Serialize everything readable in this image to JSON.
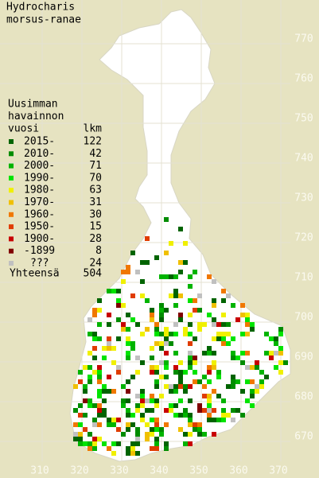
{
  "title": [
    "Hydrocharis",
    "morsus-ranae"
  ],
  "legend": {
    "header": [
      "Uusimman",
      "havainnon",
      "vuosi"
    ],
    "count_header": "lkm",
    "entries": [
      {
        "label": "2015-",
        "count": 122,
        "color": "#006400"
      },
      {
        "label": "2010-",
        "count": 42,
        "color": "#008c00"
      },
      {
        "label": "2000-",
        "count": 71,
        "color": "#00b400"
      },
      {
        "label": "1990-",
        "count": 70,
        "color": "#00e400"
      },
      {
        "label": "1980-",
        "count": 63,
        "color": "#f0f000"
      },
      {
        "label": "1970-",
        "count": 31,
        "color": "#f0c000"
      },
      {
        "label": "1960-",
        "count": 30,
        "color": "#f07800"
      },
      {
        "label": "1950-",
        "count": 15,
        "color": "#e03c00"
      },
      {
        "label": "1900-",
        "count": 28,
        "color": "#c80000"
      },
      {
        "label": "-1899",
        "count": 8,
        "color": "#800000"
      },
      {
        "label": "???",
        "count": 24,
        "color": "#c0c0c0"
      }
    ],
    "total": {
      "label": "Yhteensä",
      "count": 504
    }
  },
  "grid": {
    "x_labels": [
      310,
      320,
      330,
      340,
      350,
      360,
      370
    ],
    "y_labels": [
      670,
      680,
      690,
      700,
      710,
      720,
      730,
      740,
      750,
      760,
      770
    ]
  }
}
